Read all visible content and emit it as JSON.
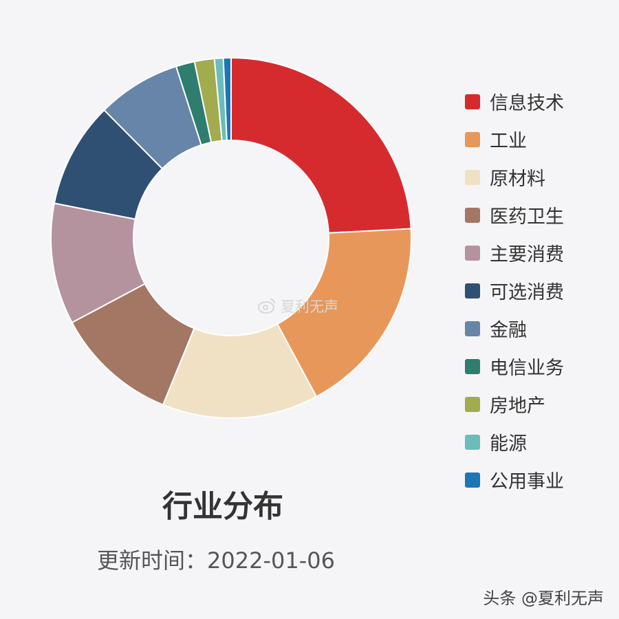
{
  "chart_data": {
    "type": "pie",
    "title": "行业分布",
    "legend_position": "right",
    "categories": [
      "信息技术",
      "工业",
      "原材料",
      "医药卫生",
      "主要消费",
      "可选消费",
      "金融",
      "电信业务",
      "房地产",
      "能源",
      "公用事业"
    ],
    "values": [
      24.5,
      18.2,
      14.2,
      11.2,
      11.0,
      9.6,
      7.6,
      1.7,
      1.8,
      0.8,
      0.7
    ],
    "colors": [
      "#d62b2e",
      "#e8975a",
      "#f1e1c4",
      "#a37764",
      "#b4939e",
      "#2f5073",
      "#6685a8",
      "#2f7d6f",
      "#a2ab4e",
      "#6cbcbc",
      "#1c76b5"
    ],
    "donut": true
  },
  "update_text": "更新时间：2022-01-06",
  "watermark": {
    "center_text": "夏利无声",
    "corner_text": "头条 @夏利无声"
  }
}
